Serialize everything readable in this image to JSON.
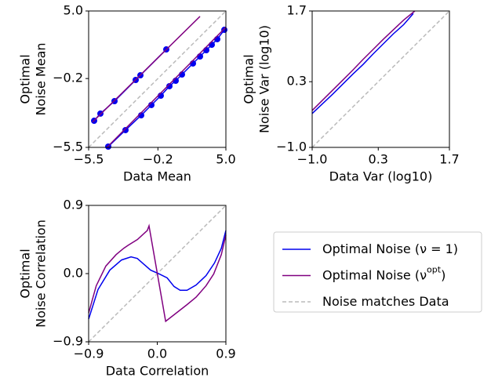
{
  "chart_data": [
    {
      "type": "line",
      "xlabel": "Data Mean",
      "ylabel": [
        "Optimal",
        "Noise Mean"
      ],
      "xlim": [
        -5.5,
        5.0
      ],
      "ylim": [
        -5.5,
        5.0
      ],
      "xticks": [
        {
          "value": -5.5,
          "label": "−5.5"
        },
        {
          "value": -0.2,
          "label": "−0.2"
        },
        {
          "value": 5.0,
          "label": "5.0"
        }
      ],
      "yticks": [
        {
          "value": -5.5,
          "label": "−5.5"
        },
        {
          "value": -0.2,
          "label": "−0.2"
        },
        {
          "value": 5.0,
          "label": "5.0"
        }
      ],
      "series": [
        {
          "markers": true,
          "x": [
            -5.08,
            -4.6,
            -3.52,
            -1.9,
            -1.54,
            0.44,
            null,
            -4.0,
            -2.68,
            -1.48,
            -0.7,
            0.02,
            0.68,
            1.16,
            1.64,
            2.48,
            3.02,
            3.5,
            3.92,
            4.34,
            4.88
          ],
          "values": [
            -3.45,
            -2.9,
            -1.94,
            -0.31,
            0.05,
            2.04,
            null,
            -5.44,
            -4.17,
            -3.03,
            -2.24,
            -1.52,
            -0.79,
            -0.37,
            0.11,
            0.96,
            1.5,
            1.98,
            2.4,
            2.83,
            3.55
          ]
        },
        {
          "x": [
            -5.2,
            3.02,
            null,
            -4.1,
            5.0
          ],
          "values": [
            -3.55,
            4.58,
            null,
            -5.5,
            3.75
          ]
        },
        {
          "x": [
            -5.5,
            5.0
          ],
          "values": [
            -5.5,
            5.0
          ]
        }
      ]
    },
    {
      "type": "line",
      "xlabel": "Data Var (log10)",
      "ylabel": [
        "Optimal",
        "Noise Var (log10)"
      ],
      "xlim": [
        -1.0,
        1.7
      ],
      "ylim": [
        -1.0,
        1.7
      ],
      "xticks": [
        {
          "value": -1.0,
          "label": "−1.0"
        },
        0.3,
        1.7
      ],
      "yticks": [
        {
          "value": -1.0,
          "label": "−1.0"
        },
        0.3,
        1.7
      ],
      "series": [
        {
          "x": [
            -1.0,
            -0.8,
            -0.6,
            -0.4,
            -0.2,
            0.0,
            0.2,
            0.4,
            0.6,
            0.8,
            0.99
          ],
          "values": [
            -0.33,
            -0.14,
            0.05,
            0.25,
            0.45,
            0.64,
            0.85,
            1.05,
            1.25,
            1.43,
            1.65
          ]
        },
        {
          "x": [
            -1.0,
            -0.8,
            -0.6,
            -0.4,
            -0.2,
            0.0,
            0.2,
            0.4,
            0.6,
            0.8,
            1.02
          ],
          "values": [
            -0.27,
            -0.07,
            0.13,
            0.33,
            0.53,
            0.74,
            0.94,
            1.14,
            1.33,
            1.52,
            1.7
          ]
        },
        {
          "x": [
            -1.0,
            1.7
          ],
          "values": [
            -1.0,
            1.7
          ]
        }
      ]
    },
    {
      "type": "line",
      "xlabel": "Data Correlation",
      "ylabel": [
        "Optimal",
        "Noise Correlation"
      ],
      "xlim": [
        -0.9,
        0.9
      ],
      "ylim": [
        -0.9,
        0.9
      ],
      "xticks": [
        {
          "value": -0.9,
          "label": "−0.9"
        },
        {
          "value": 0.0,
          "label": "0.0"
        },
        0.9
      ],
      "yticks": [
        {
          "value": -0.9,
          "label": "−0.9"
        },
        {
          "value": 0.0,
          "label": "0.0"
        },
        0.9
      ],
      "series": [
        {
          "x": [
            -0.9,
            -0.777,
            -0.622,
            -0.468,
            -0.344,
            -0.262,
            -0.18,
            -0.087,
            0.026,
            0.13,
            0.22,
            0.3,
            0.39,
            0.51,
            0.64,
            0.75,
            0.84,
            0.9
          ],
          "values": [
            -0.6,
            -0.21,
            0.046,
            0.18,
            0.221,
            0.2,
            0.128,
            0.046,
            -0.005,
            -0.057,
            -0.17,
            -0.22,
            -0.22,
            -0.15,
            -0.026,
            0.139,
            0.334,
            0.57
          ]
        },
        {
          "x": [
            -0.9,
            -0.8,
            -0.674,
            -0.54,
            -0.44,
            -0.38,
            -0.26,
            -0.13,
            -0.108,
            0.11,
            0.25,
            0.39,
            0.51,
            0.64,
            0.74,
            0.84,
            0.9
          ],
          "values": [
            -0.52,
            -0.16,
            0.1,
            0.25,
            0.334,
            0.375,
            0.45,
            0.57,
            0.63,
            -0.63,
            -0.52,
            -0.41,
            -0.31,
            -0.16,
            -0.006,
            0.25,
            0.51
          ]
        },
        {
          "x": [
            -0.9,
            0.9
          ],
          "values": [
            -0.9,
            0.9
          ]
        }
      ]
    }
  ],
  "legend": {
    "entries": [
      {
        "name": "Optimal Noise (ν = 1)",
        "color": "#0000ee",
        "dash": false
      },
      {
        "name": "Optimal Noise (ν",
        "sup": "opt",
        "suffix": ")",
        "color": "#800080",
        "dash": false
      },
      {
        "name": "Noise matches Data",
        "color": "#bbbbbb",
        "dash": true
      }
    ]
  }
}
